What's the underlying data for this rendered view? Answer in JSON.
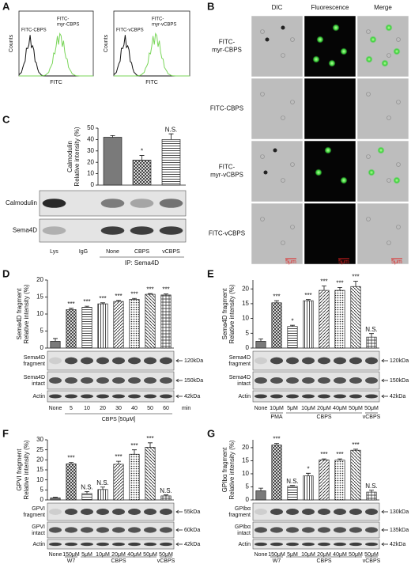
{
  "panels": {
    "A": {
      "label": "A",
      "plots": [
        {
          "curves": [
            [
              "FITC-CBPS"
            ],
            [
              "FITC-",
              "myr-CBPS"
            ]
          ],
          "ylabel": "Counts",
          "xlabel": "FITC"
        },
        {
          "curves": [
            [
              "FITC-vCBPS"
            ],
            [
              "FITC-",
              "myr-vCBPS"
            ]
          ],
          "ylabel": "Counts",
          "xlabel": "FITC"
        }
      ]
    },
    "B": {
      "label": "B",
      "columns": [
        "DIC",
        "Fluorescence",
        "Merge"
      ],
      "rows": [
        [
          "FITC-",
          "myr-CBPS"
        ],
        [
          "FITC-CBPS"
        ],
        [
          "FITC-",
          "myr-vCBPS"
        ],
        [
          "FITC-vCBPS"
        ]
      ],
      "scale_bars": [
        "5μm",
        "5μm",
        "5μm"
      ]
    },
    "C": {
      "label": "C",
      "blots": [
        "Calmodulin",
        "Sema4D"
      ],
      "lanes": [
        "Lys",
        "IgG"
      ],
      "ip": "IP: Sema4D"
    },
    "D": {
      "label": "D",
      "blots": [
        {
          "name": [
            "Sema4D",
            "fragment"
          ],
          "size": "120kDa"
        },
        {
          "name": [
            "Sema4D",
            "intact"
          ],
          "size": "150kDa"
        },
        {
          "name": [
            "Actin"
          ],
          "size": "42kDa"
        }
      ],
      "unit": "min",
      "note": "CBPS [50μM]"
    },
    "E": {
      "label": "E",
      "blots": [
        {
          "name": [
            "Sema4D",
            "fragment"
          ],
          "size": "120kDa"
        },
        {
          "name": [
            "Sema4D",
            "intact"
          ],
          "size": "150kDa"
        },
        {
          "name": [
            "Actin"
          ],
          "size": "42kDa"
        }
      ],
      "groups": [
        "PMA",
        "CBPS",
        "vCBPS"
      ]
    },
    "F": {
      "label": "F",
      "blots": [
        {
          "name": [
            "GPVI",
            "fragment"
          ],
          "size": "55kDa"
        },
        {
          "name": [
            "GPVI",
            "intact"
          ],
          "size": "60kDa"
        },
        {
          "name": [
            "Actin"
          ],
          "size": "42kDa"
        }
      ],
      "groups": [
        "W7",
        "CBPS",
        "vCBPS"
      ]
    },
    "G": {
      "label": "G",
      "blots": [
        {
          "name": [
            "GPIbα",
            "fragment"
          ],
          "size": "130kDa"
        },
        {
          "name": [
            "GPIbα",
            "intact"
          ],
          "size": "135kDa"
        },
        {
          "name": [
            "Actin"
          ],
          "size": "42kDa"
        }
      ],
      "groups": [
        "W7",
        "CBPS",
        "vCBPS"
      ]
    }
  },
  "chart_data": [
    {
      "type": "bar",
      "ylabel": [
        "Calmodulin",
        "Relative intensity (%)"
      ],
      "categories": [
        "None",
        "CBPS",
        "vCBPS"
      ],
      "values": [
        42,
        22,
        40
      ],
      "errors": [
        1.5,
        4,
        5
      ],
      "annotations": [
        null,
        "*",
        "N.S."
      ],
      "ylim": [
        0,
        50
      ],
      "yticks": [
        0,
        10,
        20,
        30,
        40,
        50
      ]
    },
    {
      "type": "bar",
      "ylabel": [
        "Sema4D fragment",
        "Relative intensity (%)"
      ],
      "categories": [
        "None",
        "5",
        "10",
        "20",
        "30",
        "40",
        "50",
        "60"
      ],
      "values": [
        2,
        11.3,
        12,
        13,
        13.7,
        14.3,
        15.8,
        15.6
      ],
      "errors": [
        0.8,
        0.4,
        0.3,
        0.3,
        0.3,
        0.3,
        0.2,
        0.3
      ],
      "annotations": [
        null,
        "***",
        "***",
        "***",
        "***",
        "***",
        "***",
        "***"
      ],
      "ylim": [
        0,
        20
      ],
      "yticks": [
        0,
        5,
        10,
        15,
        20
      ]
    },
    {
      "type": "bar",
      "ylabel": [
        "Sema4D fragment",
        "Relative intensity (%)"
      ],
      "categories": [
        "None",
        "10μM",
        "5μM",
        "10μM",
        "20μM",
        "40μM",
        "50μM",
        "50μM"
      ],
      "values": [
        2.3,
        15.3,
        7.3,
        16,
        19.5,
        19.5,
        20.8,
        3.7
      ],
      "errors": [
        0.8,
        0.7,
        0.4,
        0.4,
        1.5,
        1,
        1.8,
        1.2
      ],
      "annotations": [
        null,
        "***",
        "*",
        "***",
        "***",
        "***",
        "***",
        "N.S."
      ],
      "ylim": [
        0,
        23
      ],
      "yticks": [
        0,
        5,
        10,
        15,
        20
      ]
    },
    {
      "type": "bar",
      "ylabel": [
        "GPVI fragment",
        "Relative intensity (%)"
      ],
      "categories": [
        "None",
        "150μM",
        "5μM",
        "10μM",
        "20μM",
        "40μM",
        "50μM",
        "50μM"
      ],
      "values": [
        1,
        18,
        3.2,
        5.2,
        17.8,
        22.8,
        26.3,
        2
      ],
      "errors": [
        0.3,
        0.7,
        1,
        1.2,
        1.5,
        2.2,
        2.2,
        0.5
      ],
      "annotations": [
        null,
        "***",
        "N.S.",
        "N.S.",
        "***",
        "***",
        "***",
        "N.S."
      ],
      "ylim": [
        0,
        30
      ],
      "yticks": [
        0,
        5,
        10,
        15,
        20,
        25,
        30
      ]
    },
    {
      "type": "bar",
      "ylabel": [
        "GPIbα fragment",
        "Relative intensity (%)"
      ],
      "categories": [
        "None",
        "150μM",
        "5μM",
        "10μM",
        "20μM",
        "40μM",
        "50μM",
        "50μM"
      ],
      "values": [
        3.5,
        21,
        5.2,
        9.2,
        15.3,
        15.2,
        19,
        3
      ],
      "errors": [
        1,
        0.6,
        0.3,
        1,
        0.4,
        0.5,
        0.4,
        0.7
      ],
      "annotations": [
        null,
        "***",
        "N.S.",
        "*",
        "***",
        "***",
        "***",
        "N.S."
      ],
      "ylim": [
        0,
        23
      ],
      "yticks": [
        0,
        5,
        10,
        15,
        20
      ]
    }
  ]
}
